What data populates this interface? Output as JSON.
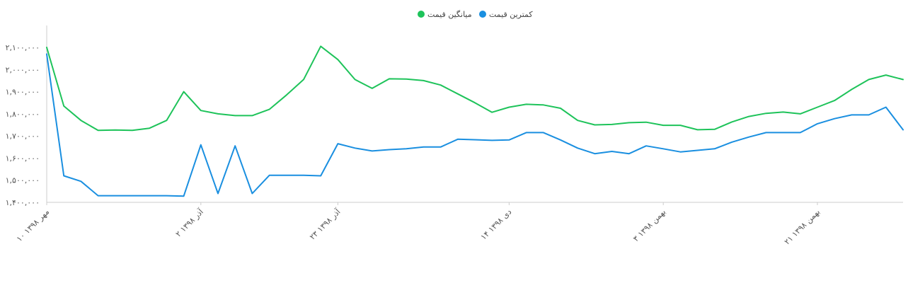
{
  "chart_data": {
    "type": "line",
    "title": "",
    "xlabel": "",
    "ylabel": "",
    "ylim": [
      1400000,
      2200000
    ],
    "yticks": [
      1400000,
      1500000,
      1600000,
      1700000,
      1800000,
      1900000,
      2000000,
      2100000
    ],
    "ytick_labels": [
      "۱,۴۰۰,۰۰۰",
      "۱,۵۰۰,۰۰۰",
      "۱,۶۰۰,۰۰۰",
      "۱,۷۰۰,۰۰۰",
      "۱,۸۰۰,۰۰۰",
      "۱,۹۰۰,۰۰۰",
      "۲,۰۰۰,۰۰۰",
      "۲,۱۰۰,۰۰۰"
    ],
    "xticks": [
      {
        "index": 0,
        "label": "۱۰ مهر ۱۳۹۸"
      },
      {
        "index": 9,
        "label": "۲ آذر ۱۳۹۸"
      },
      {
        "index": 17,
        "label": "۲۳ آذر ۱۳۹۸"
      },
      {
        "index": 27,
        "label": "۱۴ دی ۱۳۹۸"
      },
      {
        "index": 36,
        "label": "۳ بهمن ۱۳۹۸"
      },
      {
        "index": 45,
        "label": "۲۱ بهمن ۱۳۹۸"
      }
    ],
    "grid": false,
    "legend_position": "top-center",
    "series": [
      {
        "name": "میانگین قیمت",
        "color": "#1ec35a",
        "values": [
          2100000,
          1835000,
          1770000,
          1725000,
          1727000,
          1725000,
          1735000,
          1770000,
          1900000,
          1815000,
          1800000,
          1792000,
          1792000,
          1820000,
          1885000,
          1955000,
          2105000,
          2045000,
          1955000,
          1915000,
          1958000,
          1957000,
          1950000,
          1930000,
          1890000,
          1850000,
          1807000,
          1830000,
          1843000,
          1840000,
          1825000,
          1770000,
          1750000,
          1752000,
          1760000,
          1762000,
          1748000,
          1748000,
          1728000,
          1730000,
          1763000,
          1788000,
          1802000,
          1808000,
          1800000,
          1830000,
          1860000,
          1910000,
          1955000,
          1975000,
          1955000
        ]
      },
      {
        "name": "کمترین قیمت",
        "color": "#1a8fe0",
        "values": [
          2070000,
          1520000,
          1495000,
          1430000,
          1430000,
          1430000,
          1430000,
          1430000,
          1428000,
          1660000,
          1440000,
          1655000,
          1440000,
          1522000,
          1522000,
          1522000,
          1520000,
          1665000,
          1645000,
          1632000,
          1638000,
          1642000,
          1650000,
          1650000,
          1685000,
          1683000,
          1680000,
          1682000,
          1715000,
          1715000,
          1682000,
          1645000,
          1620000,
          1630000,
          1620000,
          1655000,
          1642000,
          1628000,
          1635000,
          1642000,
          1672000,
          1695000,
          1715000,
          1715000,
          1715000,
          1755000,
          1778000,
          1795000,
          1795000,
          1830000,
          1728000
        ]
      }
    ]
  }
}
